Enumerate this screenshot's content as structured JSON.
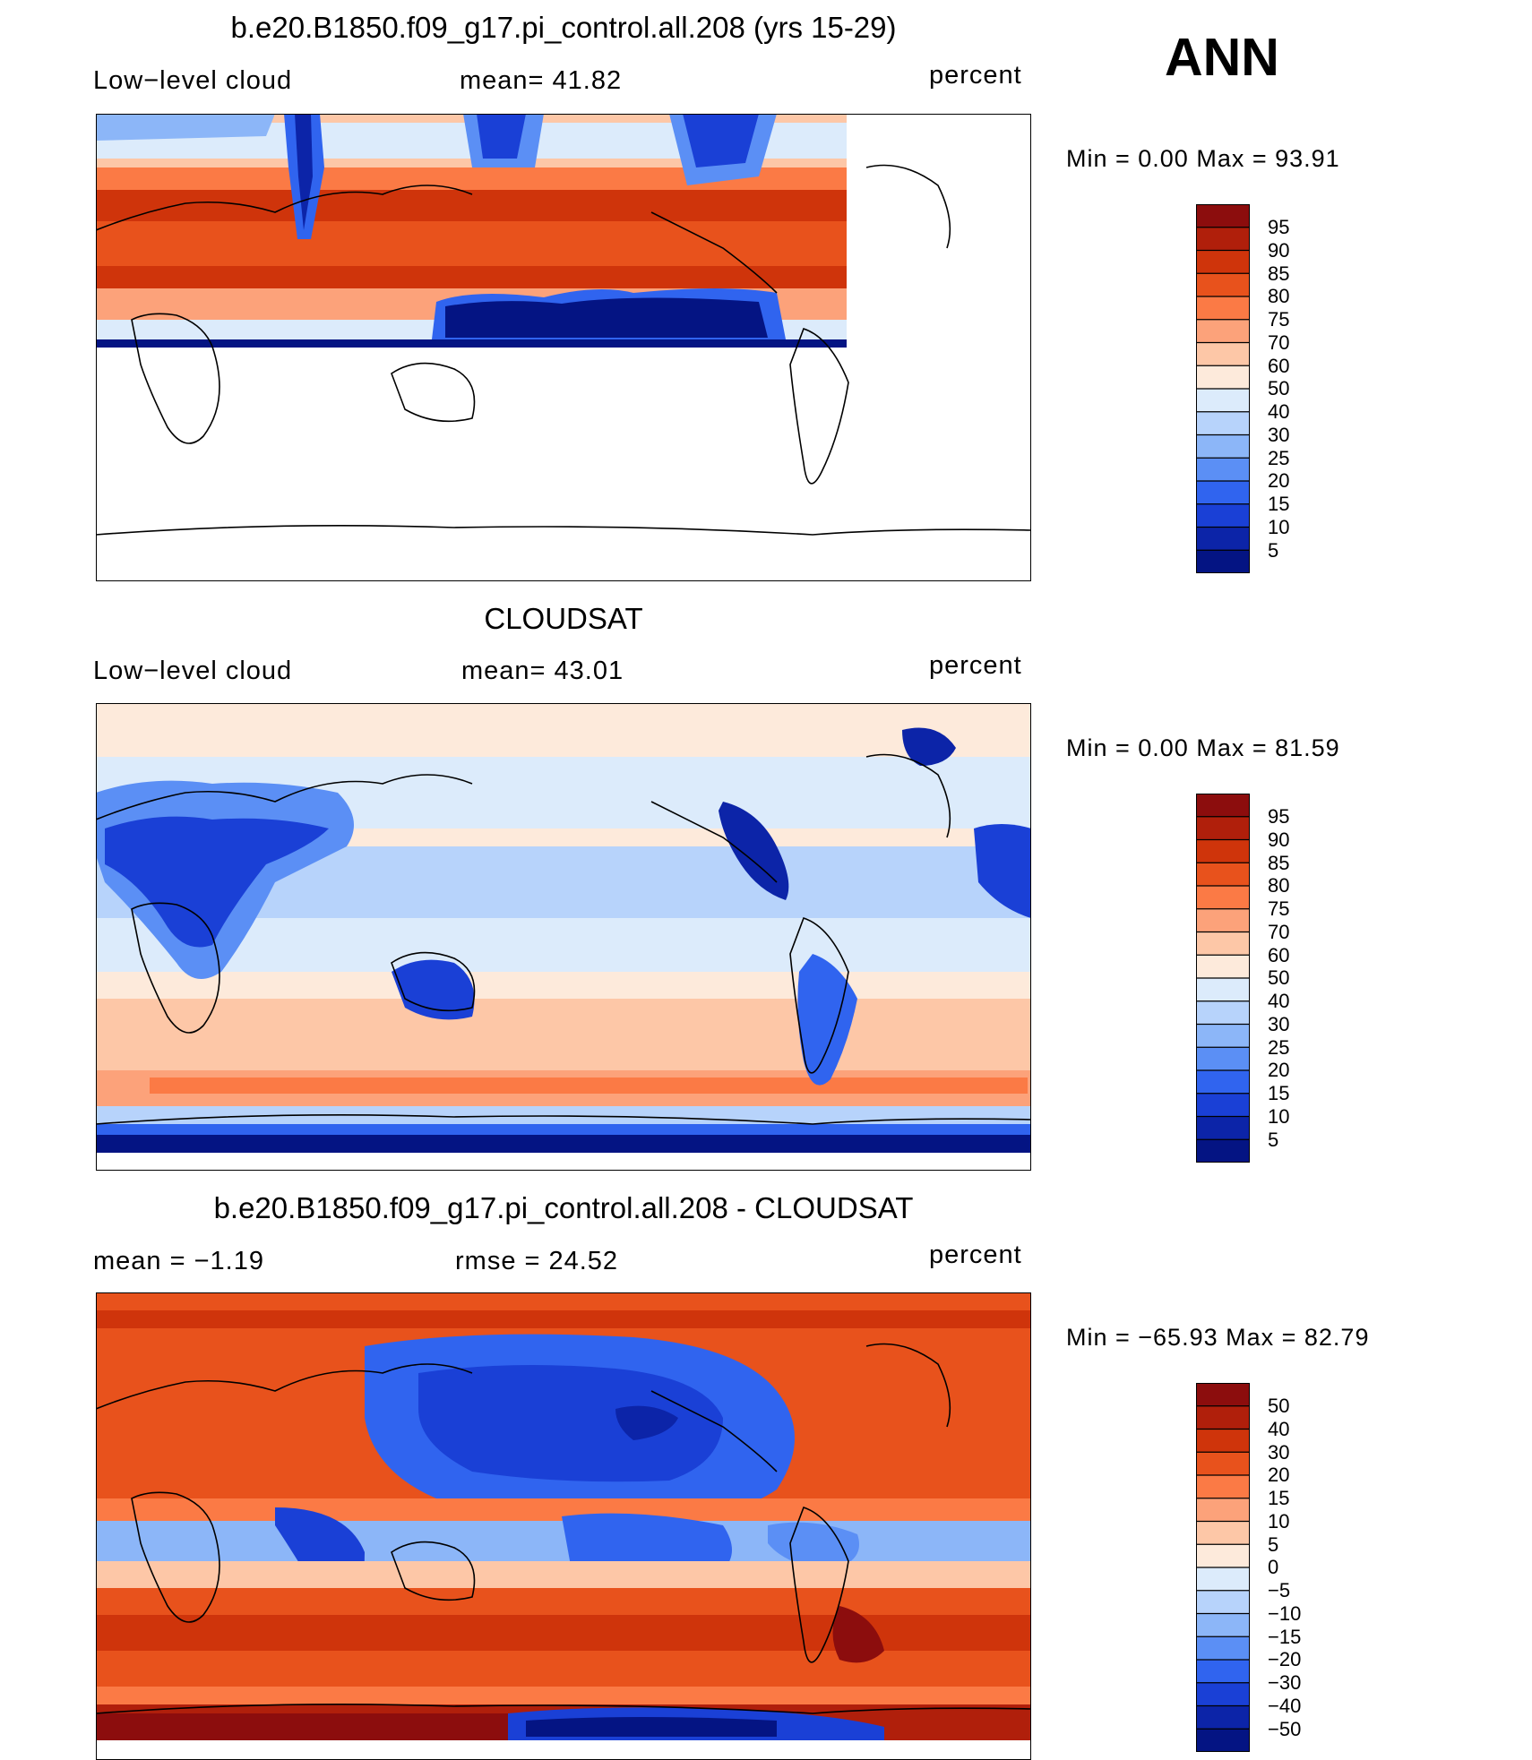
{
  "season": "ANN",
  "units_label": "percent",
  "panels": [
    {
      "title": "b.e20.B1850.f09_g17.pi_control.all.208 (yrs 15-29)",
      "left_label": "Low−level cloud",
      "stat_label": "mean=   41.82",
      "minmax": "Min =    0.00 Max =   93.91",
      "colorbar": {
        "labels": [
          "95",
          "90",
          "85",
          "80",
          "75",
          "70",
          "60",
          "50",
          "40",
          "30",
          "25",
          "20",
          "15",
          "10",
          "5"
        ],
        "colors": [
          "#8c0d0d",
          "#b01f0b",
          "#cf340b",
          "#e8521c",
          "#fb7a45",
          "#fca27a",
          "#fdc7a7",
          "#fdeadb",
          "#dcebfb",
          "#b7d3fb",
          "#8cb6f8",
          "#5b8ff5",
          "#3064ef",
          "#1a40d6",
          "#0c24a8",
          "#041483"
        ]
      }
    },
    {
      "title": "CLOUDSAT",
      "left_label": "Low−level cloud",
      "stat_label": "mean=   43.01",
      "minmax": "Min =    0.00 Max =   81.59",
      "colorbar": {
        "labels": [
          "95",
          "90",
          "85",
          "80",
          "75",
          "70",
          "60",
          "50",
          "40",
          "30",
          "25",
          "20",
          "15",
          "10",
          "5"
        ],
        "colors": [
          "#8c0d0d",
          "#b01f0b",
          "#cf340b",
          "#e8521c",
          "#fb7a45",
          "#fca27a",
          "#fdc7a7",
          "#fdeadb",
          "#dcebfb",
          "#b7d3fb",
          "#8cb6f8",
          "#5b8ff5",
          "#3064ef",
          "#1a40d6",
          "#0c24a8",
          "#041483"
        ]
      }
    },
    {
      "title": "b.e20.B1850.f09_g17.pi_control.all.208 - CLOUDSAT",
      "left_label": "mean =   −1.19",
      "stat_label": "rmse =   24.52",
      "minmax": "Min = −65.93 Max =   82.79",
      "colorbar": {
        "labels": [
          "50",
          "40",
          "30",
          "20",
          "15",
          "10",
          "5",
          "0",
          "−5",
          "−10",
          "−15",
          "−20",
          "−30",
          "−40",
          "−50"
        ],
        "colors": [
          "#8c0d0d",
          "#b01f0b",
          "#cf340b",
          "#e8521c",
          "#fb7a45",
          "#fca27a",
          "#fdc7a7",
          "#fdeadb",
          "#dcebfb",
          "#b7d3fb",
          "#8cb6f8",
          "#5b8ff5",
          "#3064ef",
          "#1a40d6",
          "#0c24a8",
          "#041483"
        ]
      }
    }
  ]
}
